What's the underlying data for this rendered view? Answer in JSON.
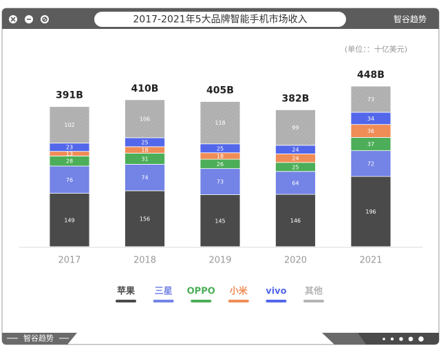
{
  "brand": "智谷趋势",
  "chart_data": {
    "type": "stacked_bar",
    "title": "2017-2021年5大品牌智能手机市场收入",
    "unit_note": "(单位：：十亿美元)",
    "categories": [
      "2017",
      "2018",
      "2019",
      "2020",
      "2021"
    ],
    "series": [
      {
        "name": "苹果",
        "color": "#4a4a4a",
        "values": [
          149,
          156,
          145,
          146,
          196
        ]
      },
      {
        "name": "三星",
        "color": "#7383e6",
        "values": [
          76,
          74,
          73,
          64,
          72
        ]
      },
      {
        "name": "OPPO",
        "color": "#4cae58",
        "values": [
          28,
          31,
          26,
          25,
          37
        ]
      },
      {
        "name": "小米",
        "color": "#f08c56",
        "values": [
          13,
          18,
          18,
          24,
          36
        ]
      },
      {
        "name": "vivo",
        "color": "#5367ea",
        "values": [
          23,
          25,
          25,
          24,
          34
        ]
      },
      {
        "name": "其他",
        "color": "#b4b4b4",
        "values": [
          102,
          106,
          118,
          99,
          73
        ]
      }
    ],
    "totals": {
      "values": [
        391,
        410,
        405,
        382,
        448
      ],
      "value_labels": [
        "391B",
        "410B",
        "405B",
        "382B",
        "448B"
      ]
    }
  }
}
